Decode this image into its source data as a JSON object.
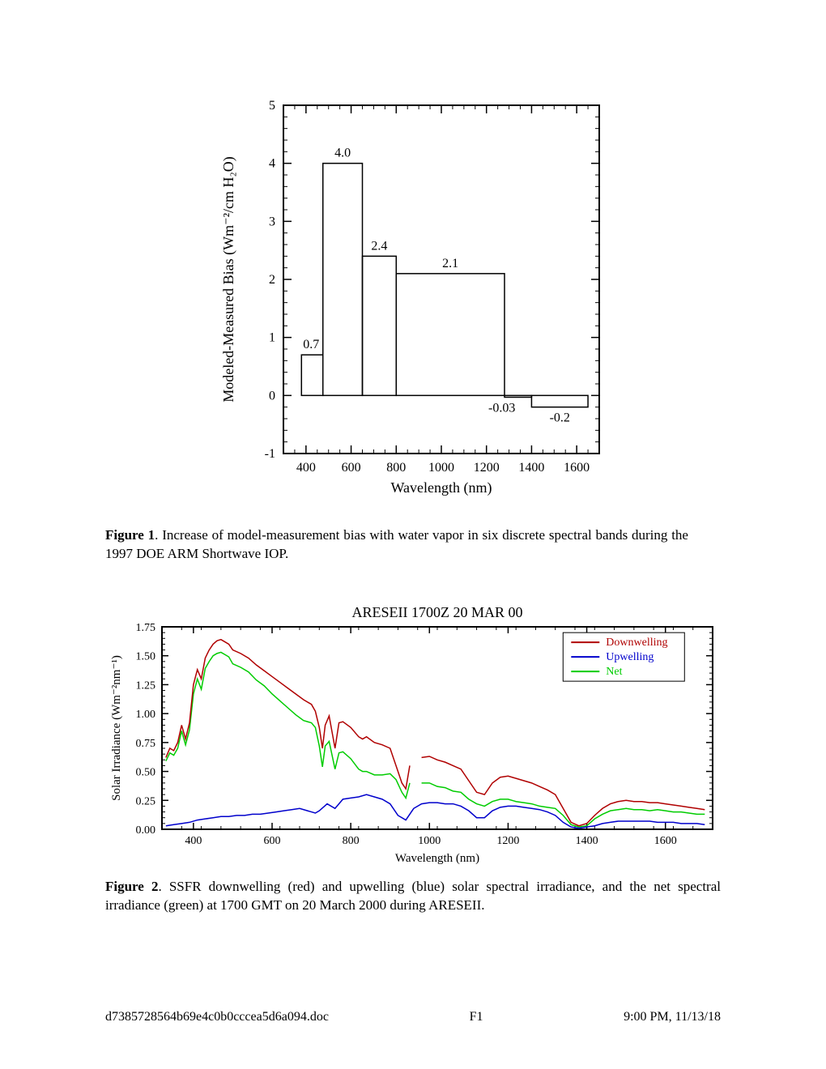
{
  "figure1": {
    "type": "bar",
    "title": "",
    "xlabel": "Wavelength (nm)",
    "ylabel": "Modeled-Measured Bias (Wm⁻²/cm H₂O)",
    "label_fontsize": 18,
    "tick_fontsize": 16,
    "xlim": [
      300,
      1700
    ],
    "ylim": [
      -1,
      5
    ],
    "xticks": [
      400,
      600,
      800,
      1000,
      1200,
      1400,
      1600
    ],
    "yticks": [
      -1,
      0,
      1,
      2,
      3,
      4,
      5
    ],
    "axis_color": "#000000",
    "background_color": "#ffffff",
    "bar_fill": "none",
    "bar_stroke": "#000000",
    "bar_stroke_width": 1.5,
    "bars": [
      {
        "x0": 380,
        "x1": 475,
        "value": 0.7,
        "label": "0.7"
      },
      {
        "x0": 475,
        "x1": 650,
        "value": 4.0,
        "label": "4.0"
      },
      {
        "x0": 650,
        "x1": 800,
        "value": 2.4,
        "label": "2.4"
      },
      {
        "x0": 800,
        "x1": 1280,
        "value": 2.1,
        "label": "2.1"
      },
      {
        "x0": 1280,
        "x1": 1400,
        "value": -0.03,
        "label": "-0.03"
      },
      {
        "x0": 1400,
        "x1": 1650,
        "value": -0.2,
        "label": "-0.2"
      }
    ]
  },
  "caption1_label": "Figure 1",
  "caption1_text": ". Increase of model-measurement bias with water vapor in six discrete spectral bands during the 1997 DOE ARM Shortwave IOP.",
  "figure2": {
    "type": "line",
    "title": "ARESEII 1700Z 20 MAR 00",
    "title_fontsize": 18,
    "xlabel": "Wavelength (nm)",
    "ylabel": "Solar Irradiance (Wm⁻²nm⁻¹)",
    "label_fontsize": 15,
    "tick_fontsize": 14,
    "xlim": [
      320,
      1720
    ],
    "ylim": [
      0,
      1.75
    ],
    "xticks": [
      400,
      600,
      800,
      1000,
      1200,
      1400,
      1600
    ],
    "yticks": [
      0.0,
      0.25,
      0.5,
      0.75,
      1.0,
      1.25,
      1.5,
      1.75
    ],
    "axis_color": "#000000",
    "background_color": "#ffffff",
    "legend": {
      "x": 1350,
      "y_top": 1.7,
      "entries": [
        {
          "label": "Downwelling",
          "color": "#b00000"
        },
        {
          "label": "Upwelling",
          "color": "#0000cc"
        },
        {
          "label": "Net",
          "color": "#00cc00"
        }
      ]
    },
    "series": {
      "downwelling": {
        "color": "#b00000",
        "width": 1.5,
        "segments": [
          [
            [
              330,
              0.62
            ],
            [
              340,
              0.7
            ],
            [
              350,
              0.68
            ],
            [
              360,
              0.75
            ],
            [
              370,
              0.9
            ],
            [
              380,
              0.78
            ],
            [
              390,
              0.92
            ],
            [
              400,
              1.25
            ],
            [
              410,
              1.38
            ],
            [
              420,
              1.3
            ],
            [
              430,
              1.48
            ],
            [
              440,
              1.55
            ],
            [
              450,
              1.6
            ],
            [
              460,
              1.63
            ],
            [
              470,
              1.64
            ],
            [
              480,
              1.62
            ],
            [
              490,
              1.6
            ],
            [
              500,
              1.55
            ],
            [
              520,
              1.52
            ],
            [
              540,
              1.48
            ],
            [
              560,
              1.42
            ],
            [
              580,
              1.37
            ],
            [
              600,
              1.32
            ],
            [
              620,
              1.27
            ],
            [
              640,
              1.22
            ],
            [
              660,
              1.17
            ],
            [
              680,
              1.12
            ],
            [
              700,
              1.08
            ],
            [
              710,
              1.02
            ],
            [
              720,
              0.88
            ],
            [
              728,
              0.7
            ],
            [
              735,
              0.9
            ],
            [
              745,
              0.98
            ],
            [
              760,
              0.7
            ],
            [
              770,
              0.92
            ],
            [
              780,
              0.93
            ],
            [
              800,
              0.88
            ],
            [
              820,
              0.8
            ],
            [
              830,
              0.78
            ],
            [
              840,
              0.8
            ],
            [
              860,
              0.75
            ],
            [
              880,
              0.73
            ],
            [
              900,
              0.7
            ],
            [
              915,
              0.55
            ],
            [
              930,
              0.4
            ],
            [
              940,
              0.35
            ],
            [
              950,
              0.55
            ]
          ],
          [
            [
              980,
              0.62
            ],
            [
              1000,
              0.63
            ],
            [
              1020,
              0.6
            ],
            [
              1040,
              0.58
            ],
            [
              1060,
              0.55
            ],
            [
              1080,
              0.52
            ],
            [
              1100,
              0.42
            ],
            [
              1120,
              0.32
            ],
            [
              1140,
              0.3
            ],
            [
              1160,
              0.4
            ],
            [
              1180,
              0.45
            ],
            [
              1200,
              0.46
            ],
            [
              1220,
              0.44
            ],
            [
              1240,
              0.42
            ],
            [
              1260,
              0.4
            ],
            [
              1280,
              0.37
            ],
            [
              1300,
              0.34
            ],
            [
              1320,
              0.3
            ],
            [
              1340,
              0.18
            ],
            [
              1360,
              0.06
            ],
            [
              1380,
              0.03
            ],
            [
              1400,
              0.05
            ],
            [
              1420,
              0.12
            ],
            [
              1440,
              0.18
            ],
            [
              1460,
              0.22
            ],
            [
              1480,
              0.24
            ],
            [
              1500,
              0.25
            ],
            [
              1520,
              0.24
            ],
            [
              1540,
              0.24
            ],
            [
              1560,
              0.23
            ],
            [
              1580,
              0.23
            ],
            [
              1600,
              0.22
            ],
            [
              1620,
              0.21
            ],
            [
              1640,
              0.2
            ],
            [
              1660,
              0.19
            ],
            [
              1680,
              0.18
            ],
            [
              1700,
              0.17
            ]
          ]
        ]
      },
      "upwelling": {
        "color": "#0000cc",
        "width": 1.5,
        "segments": [
          [
            [
              330,
              0.03
            ],
            [
              350,
              0.04
            ],
            [
              370,
              0.05
            ],
            [
              390,
              0.06
            ],
            [
              410,
              0.08
            ],
            [
              430,
              0.09
            ],
            [
              450,
              0.1
            ],
            [
              470,
              0.11
            ],
            [
              490,
              0.11
            ],
            [
              510,
              0.12
            ],
            [
              530,
              0.12
            ],
            [
              550,
              0.13
            ],
            [
              570,
              0.13
            ],
            [
              590,
              0.14
            ],
            [
              610,
              0.15
            ],
            [
              630,
              0.16
            ],
            [
              650,
              0.17
            ],
            [
              670,
              0.18
            ],
            [
              690,
              0.16
            ],
            [
              710,
              0.14
            ],
            [
              720,
              0.16
            ],
            [
              740,
              0.22
            ],
            [
              760,
              0.18
            ],
            [
              780,
              0.26
            ],
            [
              800,
              0.27
            ],
            [
              820,
              0.28
            ],
            [
              840,
              0.3
            ],
            [
              860,
              0.28
            ],
            [
              880,
              0.26
            ],
            [
              900,
              0.22
            ],
            [
              920,
              0.12
            ],
            [
              940,
              0.08
            ],
            [
              960,
              0.18
            ],
            [
              980,
              0.22
            ],
            [
              1000,
              0.23
            ],
            [
              1020,
              0.23
            ],
            [
              1040,
              0.22
            ],
            [
              1060,
              0.22
            ],
            [
              1080,
              0.2
            ],
            [
              1100,
              0.16
            ],
            [
              1120,
              0.1
            ],
            [
              1140,
              0.1
            ],
            [
              1160,
              0.16
            ],
            [
              1180,
              0.19
            ],
            [
              1200,
              0.2
            ],
            [
              1220,
              0.2
            ],
            [
              1240,
              0.19
            ],
            [
              1260,
              0.18
            ],
            [
              1280,
              0.17
            ],
            [
              1300,
              0.15
            ],
            [
              1320,
              0.12
            ],
            [
              1340,
              0.06
            ],
            [
              1360,
              0.02
            ],
            [
              1380,
              0.01
            ],
            [
              1400,
              0.02
            ],
            [
              1420,
              0.03
            ],
            [
              1440,
              0.05
            ],
            [
              1460,
              0.06
            ],
            [
              1480,
              0.07
            ],
            [
              1500,
              0.07
            ],
            [
              1520,
              0.07
            ],
            [
              1540,
              0.07
            ],
            [
              1560,
              0.07
            ],
            [
              1580,
              0.06
            ],
            [
              1600,
              0.06
            ],
            [
              1620,
              0.06
            ],
            [
              1640,
              0.05
            ],
            [
              1660,
              0.05
            ],
            [
              1680,
              0.05
            ],
            [
              1700,
              0.04
            ]
          ]
        ]
      },
      "net": {
        "color": "#00cc00",
        "width": 1.5,
        "segments": [
          [
            [
              330,
              0.59
            ],
            [
              340,
              0.66
            ],
            [
              350,
              0.64
            ],
            [
              360,
              0.7
            ],
            [
              370,
              0.85
            ],
            [
              380,
              0.73
            ],
            [
              390,
              0.86
            ],
            [
              400,
              1.17
            ],
            [
              410,
              1.3
            ],
            [
              420,
              1.21
            ],
            [
              430,
              1.39
            ],
            [
              440,
              1.45
            ],
            [
              450,
              1.5
            ],
            [
              460,
              1.52
            ],
            [
              470,
              1.53
            ],
            [
              480,
              1.51
            ],
            [
              490,
              1.49
            ],
            [
              500,
              1.43
            ],
            [
              520,
              1.4
            ],
            [
              540,
              1.36
            ],
            [
              560,
              1.29
            ],
            [
              580,
              1.24
            ],
            [
              600,
              1.17
            ],
            [
              620,
              1.11
            ],
            [
              640,
              1.05
            ],
            [
              660,
              0.99
            ],
            [
              680,
              0.94
            ],
            [
              700,
              0.92
            ],
            [
              710,
              0.88
            ],
            [
              720,
              0.72
            ],
            [
              728,
              0.54
            ],
            [
              735,
              0.72
            ],
            [
              745,
              0.76
            ],
            [
              760,
              0.52
            ],
            [
              770,
              0.66
            ],
            [
              780,
              0.67
            ],
            [
              800,
              0.61
            ],
            [
              820,
              0.52
            ],
            [
              830,
              0.5
            ],
            [
              840,
              0.5
            ],
            [
              860,
              0.47
            ],
            [
              880,
              0.47
            ],
            [
              900,
              0.48
            ],
            [
              915,
              0.43
            ],
            [
              930,
              0.32
            ],
            [
              940,
              0.27
            ],
            [
              950,
              0.4
            ]
          ],
          [
            [
              980,
              0.4
            ],
            [
              1000,
              0.4
            ],
            [
              1020,
              0.37
            ],
            [
              1040,
              0.36
            ],
            [
              1060,
              0.33
            ],
            [
              1080,
              0.32
            ],
            [
              1100,
              0.26
            ],
            [
              1120,
              0.22
            ],
            [
              1140,
              0.2
            ],
            [
              1160,
              0.24
            ],
            [
              1180,
              0.26
            ],
            [
              1200,
              0.26
            ],
            [
              1220,
              0.24
            ],
            [
              1240,
              0.23
            ],
            [
              1260,
              0.22
            ],
            [
              1280,
              0.2
            ],
            [
              1300,
              0.19
            ],
            [
              1320,
              0.18
            ],
            [
              1340,
              0.12
            ],
            [
              1360,
              0.04
            ],
            [
              1380,
              0.02
            ],
            [
              1400,
              0.03
            ],
            [
              1420,
              0.09
            ],
            [
              1440,
              0.13
            ],
            [
              1460,
              0.16
            ],
            [
              1480,
              0.17
            ],
            [
              1500,
              0.18
            ],
            [
              1520,
              0.17
            ],
            [
              1540,
              0.17
            ],
            [
              1560,
              0.16
            ],
            [
              1580,
              0.17
            ],
            [
              1600,
              0.16
            ],
            [
              1620,
              0.15
            ],
            [
              1640,
              0.15
            ],
            [
              1660,
              0.14
            ],
            [
              1680,
              0.13
            ],
            [
              1700,
              0.13
            ]
          ]
        ]
      }
    }
  },
  "caption2_label": "Figure 2",
  "caption2_text": ". SSFR downwelling (red) and upwelling (blue) solar spectral irradiance, and the net spectral irradiance (green) at 1700 GMT on 20 March 2000 during ARESEII.",
  "footer": {
    "left": "d7385728564b69e4c0b0cccea5d6a094.doc",
    "center": "F1",
    "right": "9:00 PM, 11/13/18"
  }
}
